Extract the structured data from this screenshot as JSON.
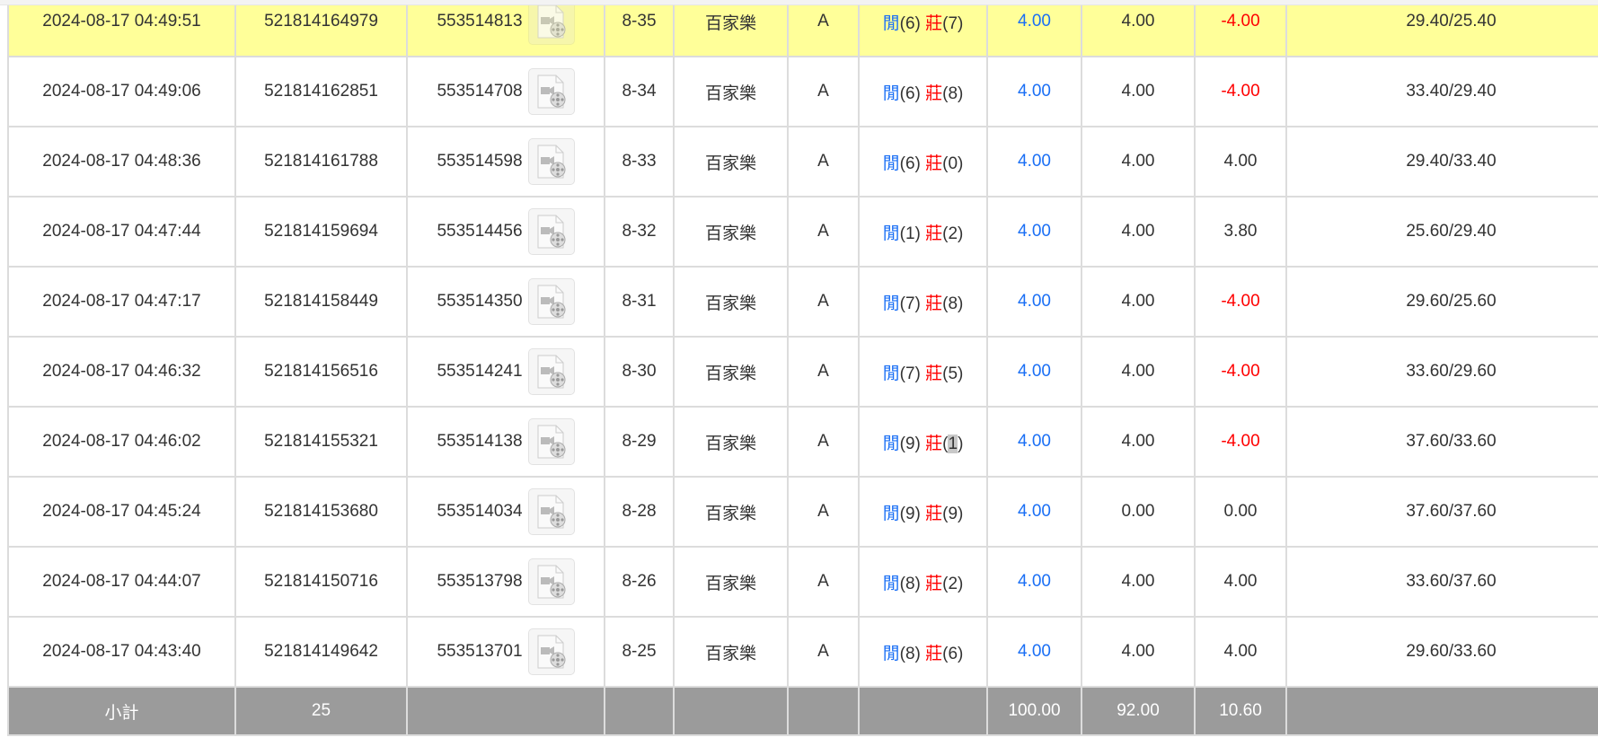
{
  "colors": {
    "highlight_row": "#ffff99",
    "player": "#1a6ff5",
    "banker": "#ff0000",
    "negative": "#ff0000",
    "bet": "#1a6ff5",
    "footer": "#9b9b9b"
  },
  "rows": [
    {
      "time": "2024-08-17 04:49:51",
      "bet_id": "521814164979",
      "round_id": "553514813",
      "shoe": "8-35",
      "game": "百家樂",
      "table": "A",
      "player_label": "閒",
      "player_score": "(6)",
      "banker_label": "莊",
      "banker_score": "(7)",
      "bet": "4.00",
      "valid": "4.00",
      "win_loss": "-4.00",
      "balance": "29.40/25.40",
      "highlighted": true
    },
    {
      "time": "2024-08-17 04:49:06",
      "bet_id": "521814162851",
      "round_id": "553514708",
      "shoe": "8-34",
      "game": "百家樂",
      "table": "A",
      "player_label": "閒",
      "player_score": "(6)",
      "banker_label": "莊",
      "banker_score": "(8)",
      "bet": "4.00",
      "valid": "4.00",
      "win_loss": "-4.00",
      "balance": "33.40/29.40"
    },
    {
      "time": "2024-08-17 04:48:36",
      "bet_id": "521814161788",
      "round_id": "553514598",
      "shoe": "8-33",
      "game": "百家樂",
      "table": "A",
      "player_label": "閒",
      "player_score": "(6)",
      "banker_label": "莊",
      "banker_score": "(0)",
      "bet": "4.00",
      "valid": "4.00",
      "win_loss": "4.00",
      "balance": "29.40/33.40"
    },
    {
      "time": "2024-08-17 04:47:44",
      "bet_id": "521814159694",
      "round_id": "553514456",
      "shoe": "8-32",
      "game": "百家樂",
      "table": "A",
      "player_label": "閒",
      "player_score": "(1)",
      "banker_label": "莊",
      "banker_score": "(2)",
      "bet": "4.00",
      "valid": "4.00",
      "win_loss": "3.80",
      "balance": "25.60/29.40"
    },
    {
      "time": "2024-08-17 04:47:17",
      "bet_id": "521814158449",
      "round_id": "553514350",
      "shoe": "8-31",
      "game": "百家樂",
      "table": "A",
      "player_label": "閒",
      "player_score": "(7)",
      "banker_label": "莊",
      "banker_score": "(8)",
      "bet": "4.00",
      "valid": "4.00",
      "win_loss": "-4.00",
      "balance": "29.60/25.60"
    },
    {
      "time": "2024-08-17 04:46:32",
      "bet_id": "521814156516",
      "round_id": "553514241",
      "shoe": "8-30",
      "game": "百家樂",
      "table": "A",
      "player_label": "閒",
      "player_score": "(7)",
      "banker_label": "莊",
      "banker_score": "(5)",
      "bet": "4.00",
      "valid": "4.00",
      "win_loss": "-4.00",
      "balance": "33.60/29.60"
    },
    {
      "time": "2024-08-17 04:46:02",
      "bet_id": "521814155321",
      "round_id": "553514138",
      "shoe": "8-29",
      "game": "百家樂",
      "table": "A",
      "player_label": "閒",
      "player_score": "(9)",
      "banker_label": "莊",
      "banker_score": "(1)",
      "bet": "4.00",
      "valid": "4.00",
      "win_loss": "-4.00",
      "balance": "37.60/33.60",
      "text_selected": true
    },
    {
      "time": "2024-08-17 04:45:24",
      "bet_id": "521814153680",
      "round_id": "553514034",
      "shoe": "8-28",
      "game": "百家樂",
      "table": "A",
      "player_label": "閒",
      "player_score": "(9)",
      "banker_label": "莊",
      "banker_score": "(9)",
      "bet": "4.00",
      "valid": "0.00",
      "win_loss": "0.00",
      "balance": "37.60/37.60"
    },
    {
      "time": "2024-08-17 04:44:07",
      "bet_id": "521814150716",
      "round_id": "553513798",
      "shoe": "8-26",
      "game": "百家樂",
      "table": "A",
      "player_label": "閒",
      "player_score": "(8)",
      "banker_label": "莊",
      "banker_score": "(2)",
      "bet": "4.00",
      "valid": "4.00",
      "win_loss": "4.00",
      "balance": "33.60/37.60"
    },
    {
      "time": "2024-08-17 04:43:40",
      "bet_id": "521814149642",
      "round_id": "553513701",
      "shoe": "8-25",
      "game": "百家樂",
      "table": "A",
      "player_label": "閒",
      "player_score": "(8)",
      "banker_label": "莊",
      "banker_score": "(6)",
      "bet": "4.00",
      "valid": "4.00",
      "win_loss": "4.00",
      "balance": "29.60/33.60"
    }
  ],
  "footer": {
    "label": "小計",
    "count": "25",
    "bet_total": "100.00",
    "valid_total": "92.00",
    "win_loss_total": "10.60"
  }
}
